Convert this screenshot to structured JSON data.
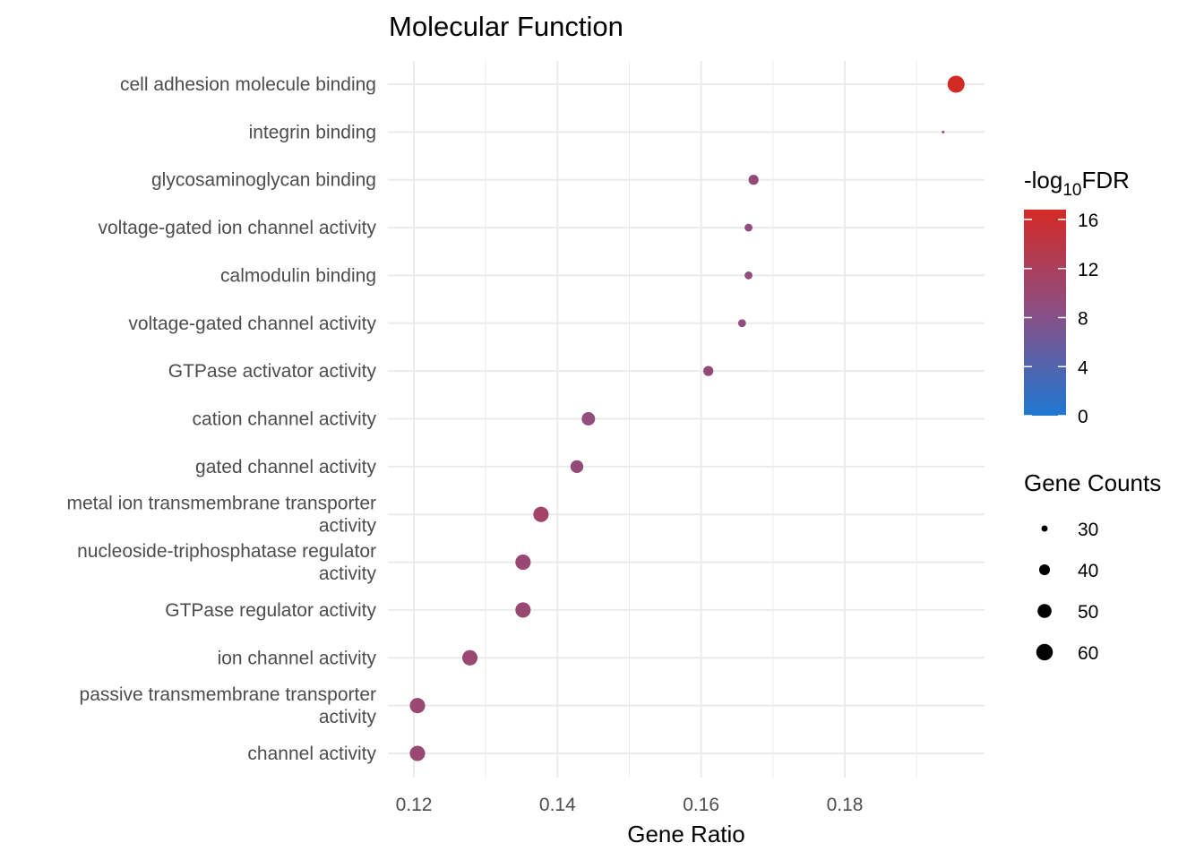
{
  "chart_data": {
    "type": "scatter",
    "title": "Molecular Function",
    "xlabel": "Gene Ratio",
    "ylabel": "",
    "xlim": [
      0.1167,
      0.1975
    ],
    "x_ticks": [
      0.12,
      0.14,
      0.16,
      0.18
    ],
    "x_tick_labels": [
      "0.12",
      "0.14",
      "0.16",
      "0.18"
    ],
    "grid": true,
    "points": [
      {
        "term": "cell adhesion molecule binding",
        "label_lines": [
          "cell adhesion molecule binding"
        ],
        "gene_ratio": 0.1955,
        "log10_fdr": 16.0,
        "gene_count": 62
      },
      {
        "term": "integrin binding",
        "label_lines": [
          "integrin binding"
        ],
        "gene_ratio": 0.1937,
        "log10_fdr": 7.5,
        "gene_count": 26
      },
      {
        "term": "glycosaminoglycan binding",
        "label_lines": [
          "glycosaminoglycan binding"
        ],
        "gene_ratio": 0.1673,
        "log10_fdr": 9.0,
        "gene_count": 38
      },
      {
        "term": "voltage-gated ion channel activity",
        "label_lines": [
          "voltage-gated ion channel activity"
        ],
        "gene_ratio": 0.1666,
        "log10_fdr": 8.5,
        "gene_count": 33
      },
      {
        "term": "calmodulin binding",
        "label_lines": [
          "calmodulin binding"
        ],
        "gene_ratio": 0.1666,
        "log10_fdr": 8.5,
        "gene_count": 33
      },
      {
        "term": "voltage-gated channel activity",
        "label_lines": [
          "voltage-gated channel activity"
        ],
        "gene_ratio": 0.1657,
        "log10_fdr": 8.5,
        "gene_count": 33
      },
      {
        "term": "GTPase activator activity",
        "label_lines": [
          "GTPase activator activity"
        ],
        "gene_ratio": 0.161,
        "log10_fdr": 9.0,
        "gene_count": 38
      },
      {
        "term": "cation channel activity",
        "label_lines": [
          "cation channel activity"
        ],
        "gene_ratio": 0.1443,
        "log10_fdr": 8.5,
        "gene_count": 48
      },
      {
        "term": "gated channel activity",
        "label_lines": [
          "gated channel activity"
        ],
        "gene_ratio": 0.1427,
        "log10_fdr": 9.0,
        "gene_count": 46
      },
      {
        "term": "metal ion transmembrane transporter activity",
        "label_lines": [
          "metal ion transmembrane transporter",
          "activity"
        ],
        "gene_ratio": 0.1377,
        "log10_fdr": 10.5,
        "gene_count": 55
      },
      {
        "term": "nucleoside-triphosphatase regulator activity",
        "label_lines": [
          "nucleoside-triphosphatase regulator",
          "activity"
        ],
        "gene_ratio": 0.1352,
        "log10_fdr": 9.5,
        "gene_count": 55
      },
      {
        "term": "GTPase regulator activity",
        "label_lines": [
          "GTPase regulator activity"
        ],
        "gene_ratio": 0.1352,
        "log10_fdr": 9.5,
        "gene_count": 55
      },
      {
        "term": "ion channel activity",
        "label_lines": [
          "ion channel activity"
        ],
        "gene_ratio": 0.1278,
        "log10_fdr": 9.5,
        "gene_count": 55
      },
      {
        "term": "passive transmembrane transporter activity",
        "label_lines": [
          "passive transmembrane transporter",
          "activity"
        ],
        "gene_ratio": 0.1205,
        "log10_fdr": 9.5,
        "gene_count": 55
      },
      {
        "term": "channel activity",
        "label_lines": [
          "channel activity"
        ],
        "gene_ratio": 0.1205,
        "log10_fdr": 9.5,
        "gene_count": 55
      }
    ],
    "color_legend": {
      "title_prefix": "-log",
      "title_subscript": "10",
      "title_suffix": "FDR",
      "range": [
        0,
        16
      ],
      "ticks": [
        0,
        4,
        8,
        12,
        16
      ],
      "tick_labels": [
        "0",
        "4",
        "8",
        "12",
        "16"
      ],
      "low_color": "#1e78d2",
      "mid_color": "#8b4f84",
      "high_color": "#d42a26"
    },
    "size_legend": {
      "title": "Gene Counts",
      "values": [
        30,
        40,
        50,
        60
      ],
      "labels": [
        "30",
        "40",
        "50",
        "60"
      ],
      "range": [
        26,
        62
      ]
    },
    "legend_position": "right"
  }
}
